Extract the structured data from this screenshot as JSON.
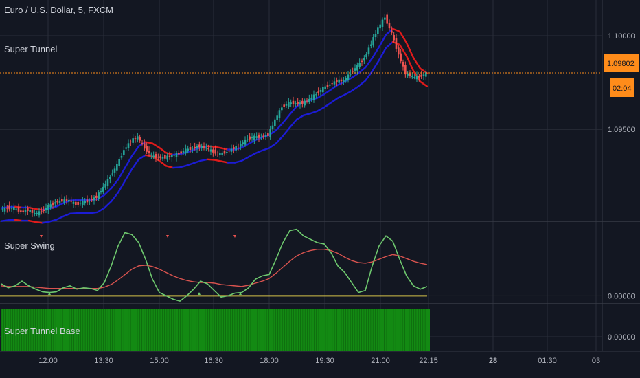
{
  "header": {
    "symbol_title": "Euro / U.S. Dollar, 5, FXCM",
    "indicator_main": "Super Tunnel"
  },
  "panes": {
    "swing_title": "Super Swing",
    "base_title": "Super Tunnel Base"
  },
  "price_axis": {
    "ticks": [
      "1.10000",
      "1.09500"
    ],
    "current_price": "1.09802",
    "countdown": "02:04"
  },
  "swing_axis": {
    "ticks": [
      "0.00000"
    ]
  },
  "base_axis": {
    "ticks": [
      "0.00000"
    ]
  },
  "time_axis": {
    "ticks": [
      "12:00",
      "13:30",
      "15:00",
      "16:30",
      "18:00",
      "19:30",
      "21:00",
      "22:15",
      "28",
      "01:30",
      "03"
    ]
  },
  "colors": {
    "background": "#131722",
    "grid": "#2a2e39",
    "candle_up": "#26a69a",
    "candle_down": "#ef5350",
    "tunnel_blue": "#1c1cd6",
    "tunnel_red": "#e01b1b",
    "price_line": "#ff8c1a",
    "swing_green": "#6ec86e",
    "swing_red": "#d9534f",
    "zero_line": "#d4c24a",
    "base_green": "#138a13"
  },
  "chart_data": [
    {
      "type": "line",
      "name": "price",
      "x": [
        0,
        10,
        20,
        30,
        40,
        50,
        60,
        70,
        80,
        90,
        100,
        110,
        120,
        130,
        140,
        150,
        160,
        170,
        180,
        190,
        200,
        210,
        220,
        230,
        240,
        250,
        260,
        270,
        280,
        290,
        300,
        310,
        320,
        330,
        340,
        350,
        360,
        370,
        380,
        390,
        400,
        410,
        420,
        430,
        440,
        450,
        460,
        470,
        480,
        490,
        500,
        510,
        520,
        530,
        540,
        550,
        560,
        570,
        580,
        590,
        600,
        610,
        620
      ],
      "close": [
        1.0907,
        1.0908,
        1.0908,
        1.0906,
        1.0907,
        1.0905,
        1.0906,
        1.0909,
        1.0911,
        1.0912,
        1.0912,
        1.091,
        1.0911,
        1.0912,
        1.0914,
        1.0919,
        1.0925,
        1.0931,
        1.0939,
        1.0944,
        1.0946,
        1.094,
        1.0936,
        1.0935,
        1.0935,
        1.0936,
        1.0937,
        1.0939,
        1.094,
        1.0941,
        1.094,
        1.0938,
        1.0937,
        1.0938,
        1.094,
        1.0942,
        1.0945,
        1.0946,
        1.0946,
        1.0947,
        1.0955,
        1.0962,
        1.0964,
        1.0964,
        1.0964,
        1.0966,
        1.0969,
        1.0972,
        1.0974,
        1.0976,
        1.0976,
        1.098,
        1.0984,
        1.0988,
        1.0996,
        1.1004,
        1.101,
        1.1001,
        1.099,
        1.098,
        1.0978,
        1.0978,
        1.098
      ],
      "price_level": 1.09802,
      "ylim": [
        1.0902,
        1.1018
      ]
    },
    {
      "type": "line",
      "name": "Super Swing",
      "x": [
        0,
        10,
        20,
        30,
        40,
        50,
        60,
        70,
        80,
        90,
        100,
        110,
        120,
        130,
        140,
        150,
        160,
        170,
        180,
        190,
        200,
        210,
        220,
        230,
        240,
        250,
        260,
        270,
        280,
        290,
        300,
        310,
        320,
        330,
        340,
        350,
        360,
        370,
        380,
        390,
        400,
        410,
        420,
        430,
        440,
        450,
        460,
        470,
        480,
        490,
        500,
        510,
        520,
        530,
        540,
        550,
        560,
        570,
        580,
        590,
        600,
        610,
        620
      ],
      "fast": [
        0.18,
        0.12,
        0.15,
        0.22,
        0.15,
        0.1,
        0.06,
        0.05,
        0.06,
        0.12,
        0.15,
        0.1,
        0.12,
        0.11,
        0.08,
        0.2,
        0.45,
        0.75,
        0.95,
        0.92,
        0.8,
        0.55,
        0.25,
        0.05,
        0.0,
        -0.05,
        -0.08,
        0.0,
        0.1,
        0.22,
        0.18,
        0.08,
        -0.02,
        0.0,
        0.04,
        0.05,
        0.12,
        0.25,
        0.3,
        0.32,
        0.55,
        0.8,
        0.98,
        1.0,
        0.9,
        0.85,
        0.8,
        0.78,
        0.65,
        0.45,
        0.35,
        0.2,
        0.05,
        0.08,
        0.45,
        0.75,
        0.9,
        0.82,
        0.55,
        0.3,
        0.15,
        0.1,
        0.14
      ],
      "slow": [
        0.15,
        0.14,
        0.14,
        0.14,
        0.14,
        0.13,
        0.12,
        0.11,
        0.11,
        0.11,
        0.11,
        0.11,
        0.11,
        0.11,
        0.11,
        0.13,
        0.17,
        0.24,
        0.32,
        0.4,
        0.45,
        0.46,
        0.44,
        0.4,
        0.35,
        0.3,
        0.26,
        0.23,
        0.21,
        0.2,
        0.2,
        0.19,
        0.17,
        0.16,
        0.15,
        0.14,
        0.16,
        0.19,
        0.22,
        0.26,
        0.34,
        0.43,
        0.52,
        0.6,
        0.65,
        0.68,
        0.7,
        0.7,
        0.68,
        0.64,
        0.58,
        0.53,
        0.5,
        0.49,
        0.51,
        0.55,
        0.59,
        0.62,
        0.6,
        0.56,
        0.52,
        0.49,
        0.47
      ],
      "ylim": [
        -0.12,
        1.12
      ]
    },
    {
      "type": "bar",
      "name": "Super Tunnel Base",
      "x_start": 0,
      "x_end": 620,
      "value": 1
    }
  ]
}
